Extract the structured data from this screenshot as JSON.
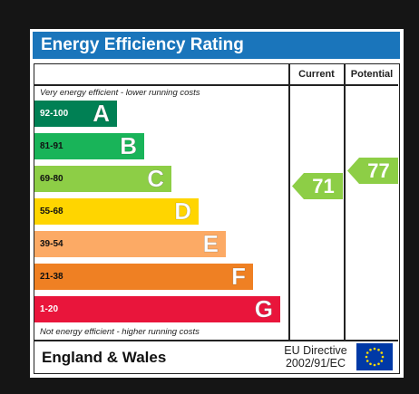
{
  "title": "Energy Efficiency Rating",
  "columns": {
    "current": "Current",
    "potential": "Potential"
  },
  "captions": {
    "top": "Very energy efficient - lower running costs",
    "bottom": "Not energy efficient - higher running costs"
  },
  "bands": [
    {
      "range": "92-100",
      "letter": "A",
      "color": "#008054"
    },
    {
      "range": "81-91",
      "letter": "B",
      "color": "#19b459"
    },
    {
      "range": "69-80",
      "letter": "C",
      "color": "#8dce46"
    },
    {
      "range": "55-68",
      "letter": "D",
      "color": "#ffd500"
    },
    {
      "range": "39-54",
      "letter": "E",
      "color": "#fcaa65"
    },
    {
      "range": "21-38",
      "letter": "F",
      "color": "#ef8023"
    },
    {
      "range": "1-20",
      "letter": "G",
      "color": "#e9153b"
    }
  ],
  "ratings": {
    "current": {
      "value": "71",
      "band": "C",
      "color": "#8dce46"
    },
    "potential": {
      "value": "77",
      "band": "C",
      "color": "#8dce46"
    }
  },
  "footer": {
    "region": "England & Wales",
    "directive_line1": "EU Directive",
    "directive_line2": "2002/91/EC"
  },
  "flag_icon": "eu-flag-icon"
}
